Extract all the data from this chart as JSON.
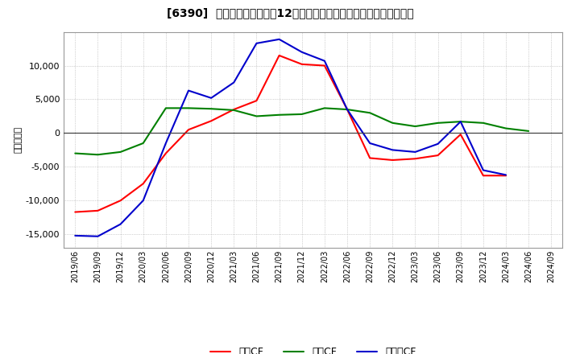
{
  "title": "[6390]  キャッシュフローの12か月移動合計の対前年同期増減額の推移",
  "ylabel": "（百万円）",
  "background_color": "#ffffff",
  "plot_bg_color": "#ffffff",
  "grid_color": "#aaaaaa",
  "ylim": [
    -17000,
    15000
  ],
  "yticks": [
    -15000,
    -10000,
    -5000,
    0,
    5000,
    10000
  ],
  "legend_labels": [
    "営業CF",
    "投資CF",
    "フリーCF"
  ],
  "line_colors": [
    "#ff0000",
    "#008000",
    "#0000cc"
  ],
  "x_labels": [
    "2019/06",
    "2019/09",
    "2019/12",
    "2020/03",
    "2020/06",
    "2020/09",
    "2020/12",
    "2021/03",
    "2021/06",
    "2021/09",
    "2021/12",
    "2022/03",
    "2022/06",
    "2022/09",
    "2022/12",
    "2023/03",
    "2023/06",
    "2023/09",
    "2023/12",
    "2024/03",
    "2024/06",
    "2024/09"
  ],
  "operating_cf": [
    -11700,
    -11500,
    -10000,
    -7500,
    -3000,
    500,
    1800,
    3500,
    4800,
    11500,
    10200,
    10000,
    3500,
    -3700,
    -4000,
    -3800,
    -3300,
    -200,
    -6300,
    -6300,
    null,
    null
  ],
  "investing_cf": [
    -3000,
    -3200,
    -2800,
    -1500,
    3700,
    3700,
    3600,
    3400,
    2500,
    2700,
    2800,
    3700,
    3500,
    3000,
    1500,
    1000,
    1500,
    1700,
    1500,
    700,
    300,
    null
  ],
  "free_cf": [
    -15200,
    -15300,
    -13500,
    -10000,
    -1500,
    6300,
    5200,
    7500,
    13300,
    13900,
    12000,
    10700,
    3500,
    -1500,
    -2500,
    -2800,
    -1600,
    1700,
    -5500,
    -6200,
    null,
    null
  ]
}
